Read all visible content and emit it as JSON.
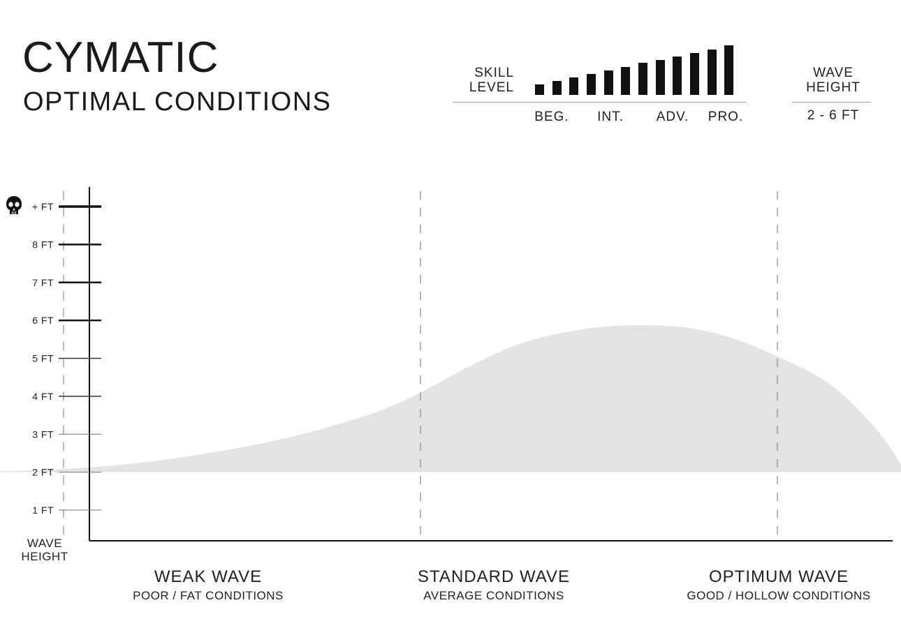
{
  "header": {
    "title": "CYMATIC",
    "subtitle": "OPTIMAL CONDITIONS"
  },
  "skill": {
    "label_line1": "SKILL",
    "label_line2": "LEVEL",
    "ticks": [
      "BEG.",
      "INT.",
      "ADV.",
      "PRO."
    ],
    "bar_heights_relative": [
      0.2,
      0.26,
      0.33,
      0.4,
      0.46,
      0.53,
      0.6,
      0.66,
      0.72,
      0.79,
      0.86,
      0.93
    ]
  },
  "wave_height_box": {
    "label_line1": "WAVE",
    "label_line2": "HEIGHT",
    "value": "2 - 6 FT"
  },
  "chart_data": {
    "type": "area",
    "ylabel_line1": "WAVE",
    "ylabel_line2": "HEIGHT",
    "y_ticks": [
      {
        "value": 1,
        "label": "1 FT",
        "weight": "light"
      },
      {
        "value": 2,
        "label": "2 FT",
        "weight": "light"
      },
      {
        "value": 3,
        "label": "3 FT",
        "weight": "light"
      },
      {
        "value": 4,
        "label": "4 FT",
        "weight": "medium"
      },
      {
        "value": 5,
        "label": "5 FT",
        "weight": "medium"
      },
      {
        "value": 6,
        "label": "6 FT",
        "weight": "bold"
      },
      {
        "value": 7,
        "label": "7 FT",
        "weight": "bold"
      },
      {
        "value": 8,
        "label": "8 FT",
        "weight": "bold"
      },
      {
        "value": 9,
        "label": "+ FT",
        "weight": "heavy",
        "icon": "skull-icon"
      }
    ],
    "ylim": [
      0.2,
      9.9
    ],
    "xlim": [
      0,
      3
    ],
    "categories": [
      {
        "x": 0.5,
        "label": "WEAK WAVE",
        "sublabel": "POOR / FAT CONDITIONS"
      },
      {
        "x": 1.5,
        "label": "STANDARD WAVE",
        "sublabel": "AVERAGE CONDITIONS"
      },
      {
        "x": 2.5,
        "label": "OPTIMUM WAVE",
        "sublabel": "GOOD / HOLLOW CONDITIONS"
      }
    ],
    "series": [
      {
        "color": "#e4e4e4",
        "baseline": 2,
        "upper": [
          [
            0.17,
            2.0
          ],
          [
            0.5,
            2.08
          ],
          [
            0.8,
            2.35
          ],
          [
            1.1,
            2.85
          ],
          [
            1.35,
            3.5
          ],
          [
            1.5,
            4.1
          ],
          [
            1.65,
            4.85
          ],
          [
            1.8,
            5.45
          ],
          [
            2.0,
            5.82
          ],
          [
            2.2,
            5.85
          ],
          [
            2.35,
            5.6
          ],
          [
            2.5,
            5.05
          ],
          [
            2.65,
            4.3
          ],
          [
            2.78,
            3.1
          ],
          [
            2.86,
            2.0
          ]
        ]
      }
    ],
    "grid": false,
    "divider_style": "dashed"
  }
}
